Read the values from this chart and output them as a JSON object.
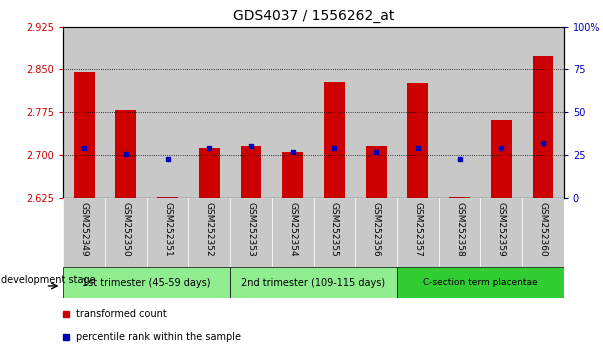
{
  "title": "GDS4037 / 1556262_at",
  "samples": [
    "GSM252349",
    "GSM252350",
    "GSM252351",
    "GSM252352",
    "GSM252353",
    "GSM252354",
    "GSM252355",
    "GSM252356",
    "GSM252357",
    "GSM252358",
    "GSM252359",
    "GSM252360"
  ],
  "bar_values": [
    2.845,
    2.78,
    2.628,
    2.713,
    2.716,
    2.706,
    2.828,
    2.716,
    2.826,
    2.628,
    2.762,
    2.873
  ],
  "bar_base": 2.625,
  "blue_values": [
    2.712,
    2.703,
    2.693,
    2.712,
    2.716,
    2.706,
    2.713,
    2.706,
    2.713,
    2.693,
    2.712,
    2.722
  ],
  "ylim": [
    2.625,
    2.925
  ],
  "yticks": [
    2.625,
    2.7,
    2.775,
    2.85,
    2.925
  ],
  "y2lim": [
    0,
    100
  ],
  "y2ticks": [
    0,
    25,
    50,
    75,
    100
  ],
  "gridlines": [
    2.7,
    2.775,
    2.85
  ],
  "groups": [
    {
      "label": "1st trimester (45-59 days)",
      "start": 0,
      "end": 3,
      "color": "#90EE90"
    },
    {
      "label": "2nd trimester (109-115 days)",
      "start": 4,
      "end": 7,
      "color": "#90EE90"
    },
    {
      "label": "C-section term placentae",
      "start": 8,
      "end": 11,
      "color": "#32CD32"
    }
  ],
  "bar_color": "#CC0000",
  "blue_color": "#0000BB",
  "sample_bg": "#C8C8C8",
  "plot_bg": "#FFFFFF",
  "left_tick_color": "#CC0000",
  "right_tick_color": "#0000BB",
  "dev_stage_label": "development stage",
  "legend_items": [
    {
      "label": "transformed count",
      "color": "#CC0000",
      "marker": "s"
    },
    {
      "label": "percentile rank within the sample",
      "color": "#0000BB",
      "marker": "s"
    }
  ],
  "bar_width": 0.5,
  "figsize": [
    6.03,
    3.54
  ],
  "dpi": 100
}
